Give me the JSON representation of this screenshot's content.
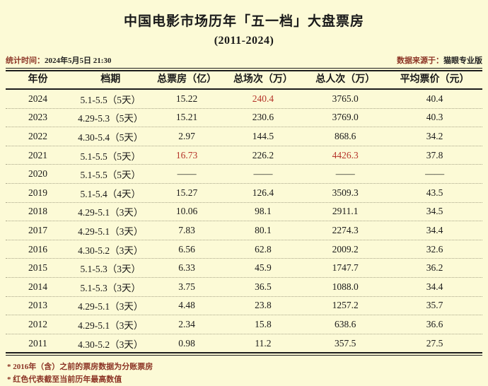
{
  "page": {
    "background_color": "#FCFAD6",
    "accent_red": "#B5342A",
    "label_red": "#8C3425"
  },
  "header": {
    "title": "中国电影市场历年「五一档」大盘票房",
    "subtitle": "(2011-2024)",
    "stat_time_label": "统计时间：",
    "stat_time_value": "2024年5月5日 21:30",
    "source_label": "数据来源于：",
    "source_value": "猫眼专业版"
  },
  "chart_data": {
    "type": "table",
    "title": "中国电影市场历年「五一档」大盘票房 (2011-2024)",
    "columns": [
      "年份",
      "档期",
      "总票房（亿）",
      "总场次（万）",
      "总人次（万）",
      "平均票价（元）"
    ],
    "rows": [
      {
        "cells": [
          "2024",
          "5.1-5.5（5天）",
          "15.22",
          "240.4",
          "3765.0",
          "40.4"
        ],
        "red": [
          3
        ]
      },
      {
        "cells": [
          "2023",
          "4.29-5.3（5天）",
          "15.21",
          "230.6",
          "3769.0",
          "40.3"
        ],
        "red": []
      },
      {
        "cells": [
          "2022",
          "4.30-5.4（5天）",
          "2.97",
          "144.5",
          "868.6",
          "34.2"
        ],
        "red": []
      },
      {
        "cells": [
          "2021",
          "5.1-5.5（5天）",
          "16.73",
          "226.2",
          "4426.3",
          "37.8"
        ],
        "red": [
          2,
          4
        ]
      },
      {
        "cells": [
          "2020",
          "5.1-5.5（5天）",
          "——",
          "——",
          "——",
          "——"
        ],
        "red": []
      },
      {
        "cells": [
          "2019",
          "5.1-5.4（4天）",
          "15.27",
          "126.4",
          "3509.3",
          "43.5"
        ],
        "red": []
      },
      {
        "cells": [
          "2018",
          "4.29-5.1（3天）",
          "10.06",
          "98.1",
          "2911.1",
          "34.5"
        ],
        "red": []
      },
      {
        "cells": [
          "2017",
          "4.29-5.1（3天）",
          "7.83",
          "80.1",
          "2274.3",
          "34.4"
        ],
        "red": []
      },
      {
        "cells": [
          "2016",
          "4.30-5.2（3天）",
          "6.56",
          "62.8",
          "2009.2",
          "32.6"
        ],
        "red": []
      },
      {
        "cells": [
          "2015",
          "5.1-5.3（3天）",
          "6.33",
          "45.9",
          "1747.7",
          "36.2"
        ],
        "red": []
      },
      {
        "cells": [
          "2014",
          "5.1-5.3（3天）",
          "3.75",
          "36.5",
          "1088.0",
          "34.4"
        ],
        "red": []
      },
      {
        "cells": [
          "2013",
          "4.29-5.1（3天）",
          "4.48",
          "23.8",
          "1257.2",
          "35.7"
        ],
        "red": []
      },
      {
        "cells": [
          "2012",
          "4.29-5.1（3天）",
          "2.34",
          "15.8",
          "638.6",
          "36.6"
        ],
        "red": []
      },
      {
        "cells": [
          "2011",
          "4.30-5.2（3天）",
          "0.98",
          "11.2",
          "357.5",
          "27.5"
        ],
        "red": []
      }
    ],
    "legend_note": "红色 = 截至当前历年最高数值",
    "missing_data_marker": "——"
  },
  "footnotes": {
    "note1": "* 2016年（含）之前的票房数据为分账票房",
    "note2": "* 红色代表截至当前历年最高数值"
  }
}
